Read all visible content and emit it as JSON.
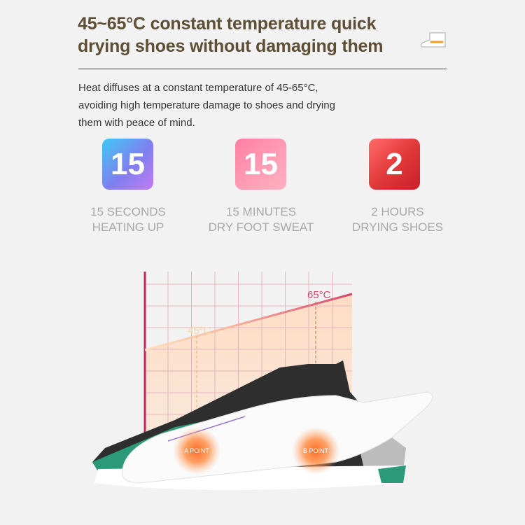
{
  "header": {
    "title": "45~65°C constant temperature quick drying shoes without damaging them",
    "icon": "boot-icon"
  },
  "description": "Heat diffuses at a constant temperature of 45-65°C, avoiding high temperature damage to shoes and drying them with peace of mind.",
  "stats": [
    {
      "value": "15",
      "label_line1": "15 SECONDS",
      "label_line2": "HEATING UP",
      "color": "#7f7ff0"
    },
    {
      "value": "15",
      "label_line1": "15 MINUTES",
      "label_line2": "DRY FOOT SWEAT",
      "color": "#ff8fae"
    },
    {
      "value": "2",
      "label_line1": "2 HOURS",
      "label_line2": "DRYING SHOES",
      "color": "#e23a3a"
    }
  ],
  "diagram": {
    "low_temp": "45°C",
    "high_temp": "65°C",
    "point_a": "A POINT",
    "point_b": "B POINT",
    "line_color": "#d6456c"
  }
}
